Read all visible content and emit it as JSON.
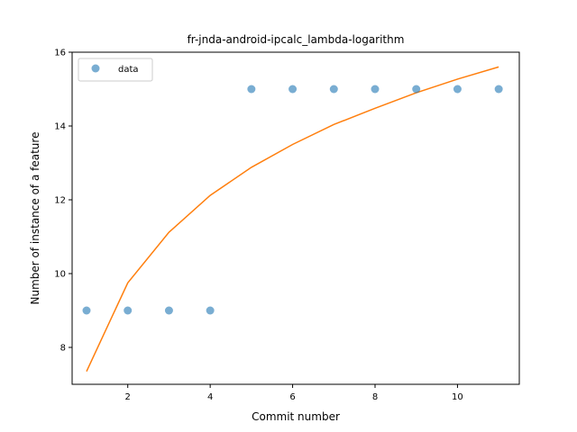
{
  "chart_data": {
    "type": "scatter",
    "title": "fr-jnda-android-ipcalc_lambda-logarithm",
    "xlabel": "Commit number",
    "ylabel": "Number of instance of a feature",
    "xlim": [
      0.65,
      11.5
    ],
    "ylim": [
      7.0,
      16.0
    ],
    "xticks": [
      2,
      4,
      6,
      8,
      10
    ],
    "yticks": [
      8,
      10,
      12,
      14,
      16
    ],
    "grid": false,
    "legend_position": "upper-left",
    "series": [
      {
        "name": "data",
        "kind": "scatter",
        "color": "#1f77b4",
        "x": [
          1,
          2,
          3,
          4,
          5,
          6,
          7,
          8,
          9,
          10,
          11
        ],
        "y": [
          9,
          9,
          9,
          9,
          15,
          15,
          15,
          15,
          15,
          15,
          15
        ]
      },
      {
        "kind": "line",
        "color": "#ff7f0e",
        "x": [
          1,
          2,
          3,
          4,
          5,
          6,
          7,
          8,
          9,
          10,
          11
        ],
        "y": [
          7.35,
          9.75,
          11.12,
          12.12,
          12.88,
          13.5,
          14.04,
          14.48,
          14.9,
          15.27,
          15.6
        ]
      }
    ]
  }
}
